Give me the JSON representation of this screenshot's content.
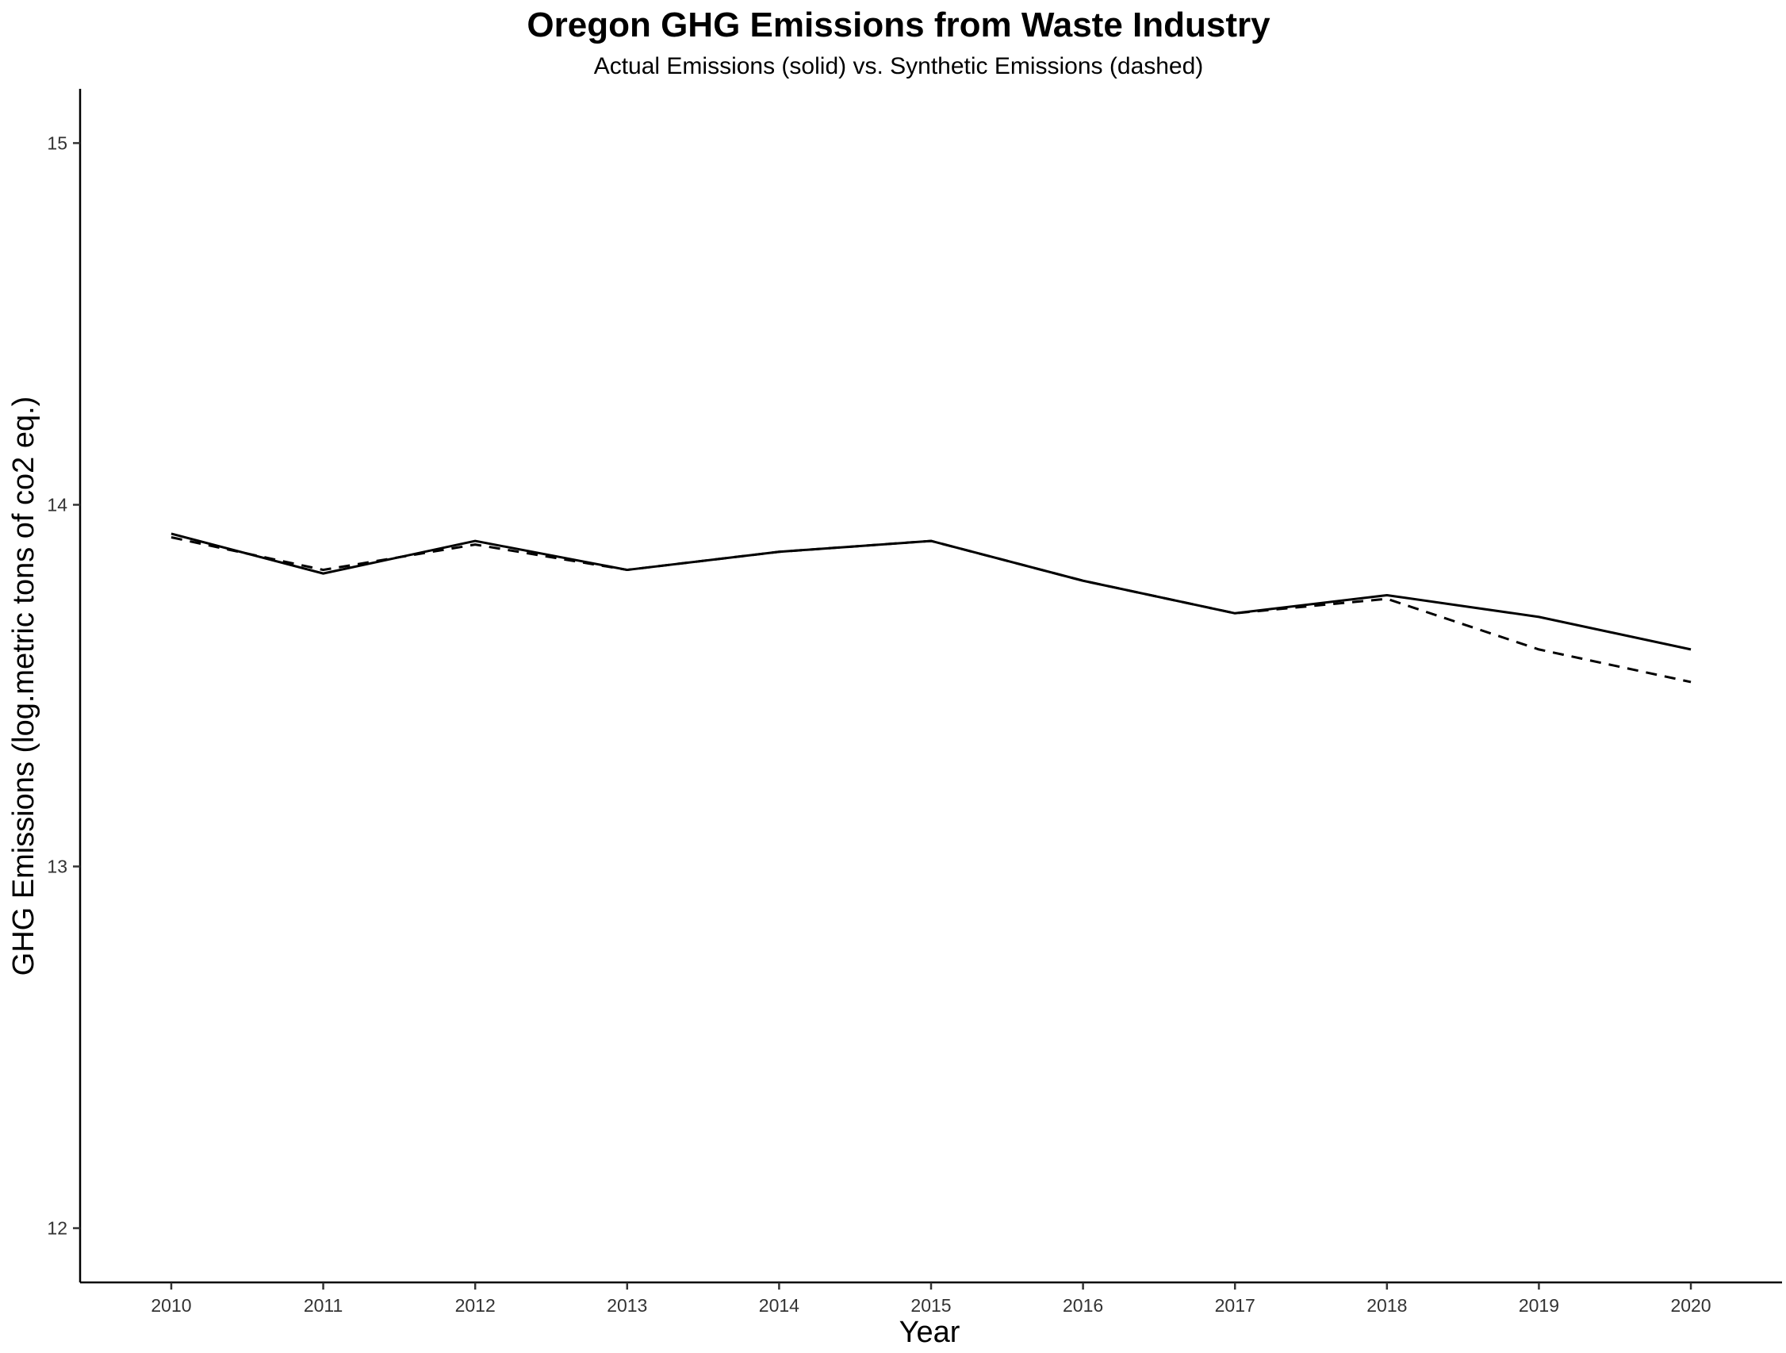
{
  "chart_data": {
    "type": "line",
    "title": "Oregon GHG Emissions from Waste Industry",
    "subtitle": "Actual Emissions (solid) vs. Synthetic Emissions (dashed)",
    "xlabel": "Year",
    "ylabel": "GHG Emissions (log.metric tons of co2 eq.)",
    "x": [
      2010,
      2011,
      2012,
      2013,
      2014,
      2015,
      2016,
      2017,
      2018,
      2019,
      2020
    ],
    "xlim": [
      2009.4,
      2020.6
    ],
    "ylim": [
      11.85,
      15.15
    ],
    "yticks": [
      12,
      13,
      14,
      15
    ],
    "grid": false,
    "series": [
      {
        "style": "solid",
        "color": "#000000",
        "values": [
          13.92,
          13.81,
          13.9,
          13.82,
          13.87,
          13.9,
          13.79,
          13.7,
          13.75,
          13.69,
          13.6
        ]
      },
      {
        "style": "dashed",
        "color": "#000000",
        "values": [
          13.91,
          13.82,
          13.89,
          13.82,
          13.87,
          13.9,
          13.79,
          13.7,
          13.74,
          13.6,
          13.51
        ]
      }
    ]
  }
}
